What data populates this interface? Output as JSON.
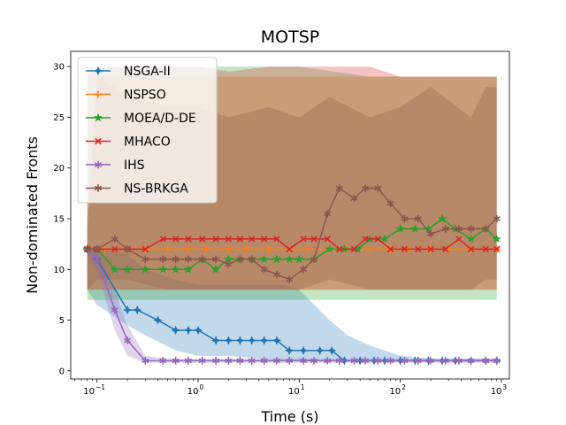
{
  "chart_data": {
    "type": "line",
    "title": "MOTSP",
    "xlabel": "Time (s)",
    "ylabel": "Non-dominated Fronts",
    "xscale": "log",
    "xlim": [
      0.055,
      1200
    ],
    "ylim": [
      -0.8,
      31.5
    ],
    "yticks": [
      0,
      5,
      10,
      15,
      20,
      25,
      30
    ],
    "xticks": [
      {
        "value": 0.1,
        "base": "10",
        "exp": "−1"
      },
      {
        "value": 1,
        "base": "10",
        "exp": "0"
      },
      {
        "value": 10,
        "base": "10",
        "exp": "1"
      },
      {
        "value": 100,
        "base": "10",
        "exp": "2"
      },
      {
        "value": 1000,
        "base": "10",
        "exp": "3"
      }
    ],
    "grid": false,
    "legend": "top-left",
    "series": [
      {
        "name": "NSGA-II",
        "color": "#1f77b4",
        "marker": "star4",
        "x": [
          0.08,
          0.1,
          0.2,
          0.25,
          0.4,
          0.6,
          0.8,
          1.0,
          1.5,
          2.0,
          2.6,
          3.4,
          4.5,
          6.0,
          8.0,
          11,
          16,
          21,
          28,
          40,
          55,
          70,
          100,
          140,
          190,
          260,
          350,
          500,
          700,
          900
        ],
        "values": [
          12,
          11,
          6,
          6,
          5,
          4,
          4,
          4,
          3,
          3,
          3,
          3,
          3,
          3,
          2,
          2,
          2,
          2,
          1,
          1,
          1,
          1,
          1,
          1,
          1,
          1,
          1,
          1,
          1,
          1
        ],
        "band_x": [
          0.08,
          0.1,
          0.2,
          0.3,
          0.6,
          1.0,
          2.0,
          4.0,
          7.0,
          10,
          20,
          30,
          50,
          100,
          200,
          900
        ],
        "band_low": [
          8,
          6.5,
          4.5,
          3.5,
          2,
          1.5,
          1.5,
          1.2,
          1,
          1,
          1,
          1,
          1,
          1,
          1,
          1
        ],
        "band_high": [
          12,
          12,
          11.5,
          10,
          9,
          8.5,
          8.5,
          8.5,
          8.5,
          8,
          5,
          3.5,
          2.5,
          1.5,
          1.2,
          1.2
        ]
      },
      {
        "name": "NSPSO",
        "color": "#ff7f0e",
        "marker": "plus",
        "x": [
          0.08,
          0.12,
          0.2,
          0.3,
          0.5,
          0.8,
          1.2,
          2,
          3,
          5,
          8,
          12,
          20,
          30,
          50,
          80,
          120,
          200,
          300,
          500,
          900
        ],
        "values": [
          12,
          12,
          12,
          12,
          12,
          12,
          12,
          12,
          12,
          12,
          12,
          12,
          12,
          12,
          12,
          12,
          12,
          12,
          12,
          12,
          12
        ],
        "band_x": [
          0.08,
          0.1,
          0.2,
          0.5,
          1,
          5,
          10,
          50,
          100,
          500,
          900
        ],
        "band_low": [
          8,
          8,
          8,
          8,
          8,
          8,
          8,
          8,
          8,
          8,
          8
        ],
        "band_high": [
          14,
          29,
          29,
          29,
          29,
          29,
          29,
          29,
          29,
          29,
          29
        ]
      },
      {
        "name": "MOEA/D-DE",
        "color": "#2ca02c",
        "marker": "star5",
        "x": [
          0.08,
          0.1,
          0.15,
          0.2,
          0.3,
          0.45,
          0.6,
          0.8,
          1.1,
          1.5,
          2.0,
          2.6,
          3.4,
          4.5,
          6.0,
          8.0,
          10,
          14,
          20,
          28,
          38,
          50,
          70,
          100,
          140,
          190,
          260,
          350,
          500,
          700,
          900
        ],
        "values": [
          12,
          12,
          10,
          10,
          10,
          10,
          10,
          10,
          11,
          10,
          11,
          11,
          11,
          11,
          11,
          11,
          11,
          11,
          12,
          12,
          12,
          13,
          13,
          14,
          14,
          14,
          15,
          14,
          13,
          14,
          13
        ],
        "band_x": [
          0.08,
          0.1,
          0.2,
          0.5,
          1,
          5,
          10,
          50,
          100,
          500,
          900
        ],
        "band_low": [
          7,
          7,
          7,
          7,
          7,
          7,
          7,
          7,
          7,
          7,
          7
        ],
        "band_high": [
          29,
          30,
          30,
          30,
          30,
          30,
          30,
          29,
          29,
          29,
          29
        ]
      },
      {
        "name": "MHACO",
        "color": "#d62728",
        "marker": "x",
        "x": [
          0.08,
          0.1,
          0.15,
          0.2,
          0.3,
          0.45,
          0.6,
          0.8,
          1.1,
          1.5,
          2.0,
          2.6,
          3.4,
          4.5,
          6.0,
          8.0,
          11,
          14,
          19,
          25,
          35,
          45,
          60,
          80,
          110,
          150,
          200,
          280,
          380,
          500,
          700,
          900
        ],
        "values": [
          12,
          12,
          12,
          12,
          12,
          13,
          13,
          13,
          13,
          13,
          13,
          13,
          13,
          13,
          13,
          12,
          13,
          13,
          13,
          12,
          12,
          13,
          13,
          12,
          12,
          12,
          12,
          12,
          13,
          12,
          12,
          12
        ],
        "band_x": [
          0.08,
          0.1,
          0.2,
          0.5,
          1,
          2,
          5,
          10,
          50,
          100,
          500,
          900
        ],
        "band_low": [
          8,
          8,
          8,
          8,
          8,
          8,
          8,
          8,
          8,
          8,
          8,
          8
        ],
        "band_high": [
          30,
          30,
          30,
          30,
          30,
          29.5,
          30,
          30,
          30,
          29,
          29,
          29
        ]
      },
      {
        "name": "IHS",
        "color": "#9467bd",
        "marker": "asterisk",
        "x": [
          0.08,
          0.1,
          0.15,
          0.2,
          0.3,
          0.45,
          0.6,
          0.8,
          1.1,
          1.5,
          2.0,
          2.6,
          3.4,
          4.5,
          6.0,
          8.0,
          11,
          14,
          19,
          25,
          35,
          45,
          60,
          80,
          110,
          150,
          200,
          280,
          380,
          500,
          700,
          900
        ],
        "values": [
          12,
          11,
          6,
          3,
          1,
          1,
          1,
          1,
          1,
          1,
          1,
          1,
          1,
          1,
          1,
          1,
          1,
          1,
          1,
          1,
          1,
          1,
          1,
          1,
          1,
          1,
          1,
          1,
          1,
          1,
          1,
          1
        ],
        "band_x": [
          0.08,
          0.1,
          0.15,
          0.2,
          0.3,
          0.5,
          900
        ],
        "band_low": [
          11.5,
          10,
          4,
          1.5,
          0.8,
          0.8,
          0.8
        ],
        "band_high": [
          12.5,
          12,
          8,
          4.5,
          1.5,
          1.2,
          1.2
        ]
      },
      {
        "name": "NS-BRKGA",
        "color": "#8c564b",
        "marker": "asterisk",
        "x": [
          0.08,
          0.1,
          0.15,
          0.2,
          0.3,
          0.45,
          0.6,
          0.8,
          1.1,
          1.5,
          2.0,
          2.6,
          3.4,
          4.5,
          6.0,
          8.0,
          11,
          14,
          19,
          25,
          35,
          45,
          60,
          80,
          110,
          150,
          200,
          280,
          380,
          500,
          700,
          900
        ],
        "values": [
          12,
          12,
          13,
          12,
          11,
          11,
          11,
          11,
          11,
          11,
          10.5,
          11,
          11,
          10,
          9.5,
          9,
          10,
          11,
          15.5,
          18,
          17,
          18,
          18,
          16.5,
          15,
          15,
          13.5,
          14,
          14,
          14,
          14,
          15
        ],
        "band_x": [
          0.08,
          0.1,
          0.15,
          0.2,
          0.5,
          1,
          2,
          5,
          10,
          20,
          50,
          100,
          200,
          500,
          700,
          900
        ],
        "band_low": [
          8,
          9,
          9,
          9,
          8,
          8,
          8,
          8,
          8,
          9,
          8,
          8,
          8,
          8,
          9,
          9
        ],
        "band_high": [
          14,
          29,
          28,
          27,
          26,
          26,
          25,
          26,
          25,
          27,
          25,
          26,
          28,
          25,
          28,
          28
        ]
      }
    ]
  }
}
